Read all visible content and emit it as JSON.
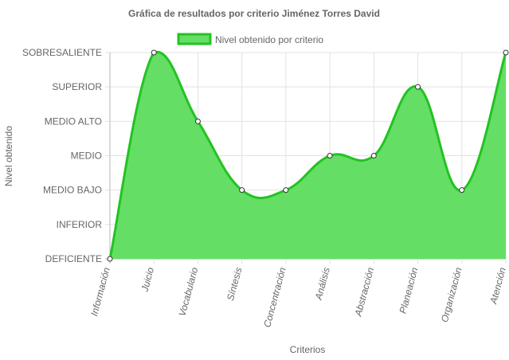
{
  "chart_data": {
    "type": "area",
    "title": "Gráfica de resultados por criterio Jiménez Torres David",
    "xlabel": "Criterios",
    "ylabel": "Nivel obtenido",
    "categories": [
      "Información",
      "Juicio",
      "Vocabulario",
      "Síntesis",
      "Concentración",
      "Análisis",
      "Abstracción",
      "Planeación",
      "Organización",
      "Atención"
    ],
    "y_levels": [
      "DEFICIENTE",
      "INFERIOR",
      "MEDIO BAJO",
      "MEDIO",
      "MEDIO ALTO",
      "SUPERIOR",
      "SOBRESALIENTE"
    ],
    "series": [
      {
        "name": "Nivel obtenido por criterio",
        "values": [
          0,
          6,
          4,
          2,
          2,
          3,
          3,
          5,
          2,
          6
        ],
        "fill_color": "#65de65",
        "line_color": "#22c322"
      }
    ],
    "ylim": [
      0,
      6
    ],
    "grid": true,
    "legend_position": "top"
  },
  "colors": {
    "grid": "#e2e2e2",
    "axis": "#b5b5b5",
    "text": "#666666",
    "title": "#666666"
  }
}
